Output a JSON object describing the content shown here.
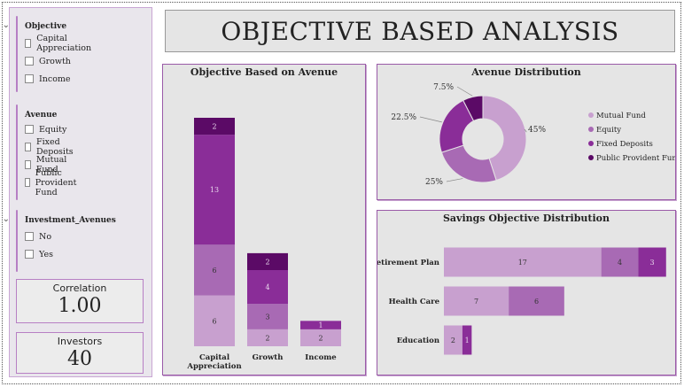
{
  "colors": {
    "mutual_fund": "#c8a0cf",
    "equity": "#a86ab4",
    "fixed_deposits": "#8a2d98",
    "public_provident_fund": "#5b0a66",
    "border": "#b77fc4"
  },
  "sidebar": {
    "objective": {
      "title": "Objective",
      "options": [
        "Capital Appreciation",
        "Growth",
        "Income"
      ]
    },
    "avenue": {
      "title": "Avenue",
      "options": [
        "Equity",
        "Fixed Deposits",
        "Mutual Fund",
        "Public Provident Fund"
      ]
    },
    "investment_avenues": {
      "title": "Investment_Avenues",
      "options": [
        "No",
        "Yes"
      ]
    }
  },
  "cards": {
    "correlation": {
      "label": "Correlation",
      "value": "1.00"
    },
    "investors": {
      "label": "Investors",
      "value": "40"
    }
  },
  "header": {
    "title": "OBJECTIVE BASED ANALYSIS"
  },
  "chart_data": [
    {
      "type": "bar",
      "title": "Objective Based on Avenue",
      "stacked": true,
      "orientation": "vertical",
      "categories": [
        "Capital Appreciation",
        "Growth",
        "Income"
      ],
      "category_lines": [
        [
          "Capital",
          "Appreciation"
        ],
        [
          "Growth"
        ],
        [
          "Income"
        ]
      ],
      "series": [
        {
          "name": "Mutual Fund",
          "values": [
            6,
            2,
            2
          ]
        },
        {
          "name": "Equity",
          "values": [
            6,
            3,
            0
          ]
        },
        {
          "name": "Fixed Deposits",
          "values": [
            13,
            4,
            1
          ]
        },
        {
          "name": "Public Provident Fund",
          "values": [
            2,
            2,
            0
          ]
        }
      ],
      "ylim": [
        0,
        27
      ],
      "grid": false
    },
    {
      "type": "pie",
      "title": "Avenue Distribution",
      "donut": true,
      "categories": [
        "Mutual Fund",
        "Equity",
        "Fixed Deposits",
        "Public Provident Fund"
      ],
      "values": [
        45,
        25,
        22.5,
        7.5
      ],
      "labels": [
        "45%",
        "25%",
        "22.5%",
        "7.5%"
      ],
      "legend": "right"
    },
    {
      "type": "bar",
      "title": "Savings Objective Distribution",
      "stacked": true,
      "orientation": "horizontal",
      "categories": [
        "Retirement Plan",
        "Health Care",
        "Education"
      ],
      "series": [
        {
          "name": "Mutual Fund",
          "values": [
            17,
            7,
            2
          ]
        },
        {
          "name": "Equity",
          "values": [
            4,
            6,
            0
          ]
        },
        {
          "name": "Fixed Deposits",
          "values": [
            3,
            0,
            1
          ]
        }
      ],
      "xlim": [
        0,
        24.5
      ],
      "grid": false
    }
  ]
}
